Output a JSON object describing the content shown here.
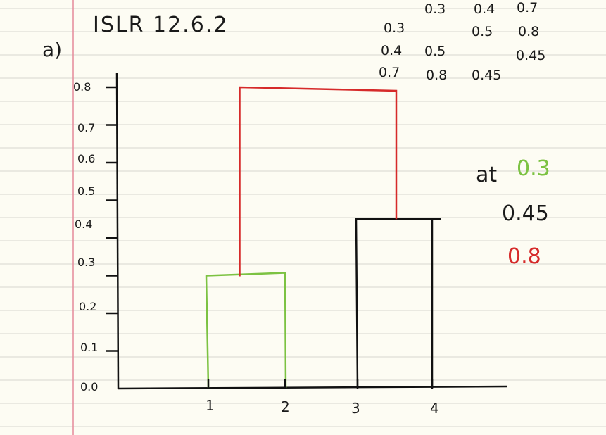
{
  "title": "ISLR 12.6.2",
  "part_label": "a)",
  "dissimilarity_matrix": [
    [
      "",
      "0.3",
      "0.4",
      "0.7"
    ],
    [
      "0.3",
      "",
      "0.5",
      "0.8"
    ],
    [
      "0.4",
      "0.5",
      "",
      "0.45"
    ],
    [
      "0.7",
      "0.8",
      "0.45",
      ""
    ]
  ],
  "y_ticks": [
    "0.0",
    "0.1",
    "0.2",
    "0.3",
    "0.4",
    "0.5",
    "0.6",
    "0.7",
    "0.8"
  ],
  "leaves": [
    "1",
    "2",
    "3",
    "4"
  ],
  "merges": [
    {
      "left": "1",
      "right": "2",
      "height": 0.3,
      "color": "#7cc242"
    },
    {
      "left": "3",
      "right": "4",
      "height": 0.45,
      "color": "#111111"
    },
    {
      "left": "{1,2}",
      "right": "{3,4}",
      "height": 0.8,
      "color": "#d62a2a"
    }
  ],
  "notes": {
    "at": "at",
    "h1": "0.3",
    "h2": "0.45",
    "h3": "0.8"
  },
  "colors": {
    "green": "#7cc242",
    "black": "#111111",
    "red": "#d62a2a",
    "margin_line": "#e58a9a",
    "rule_line": "#d6d6cf"
  }
}
